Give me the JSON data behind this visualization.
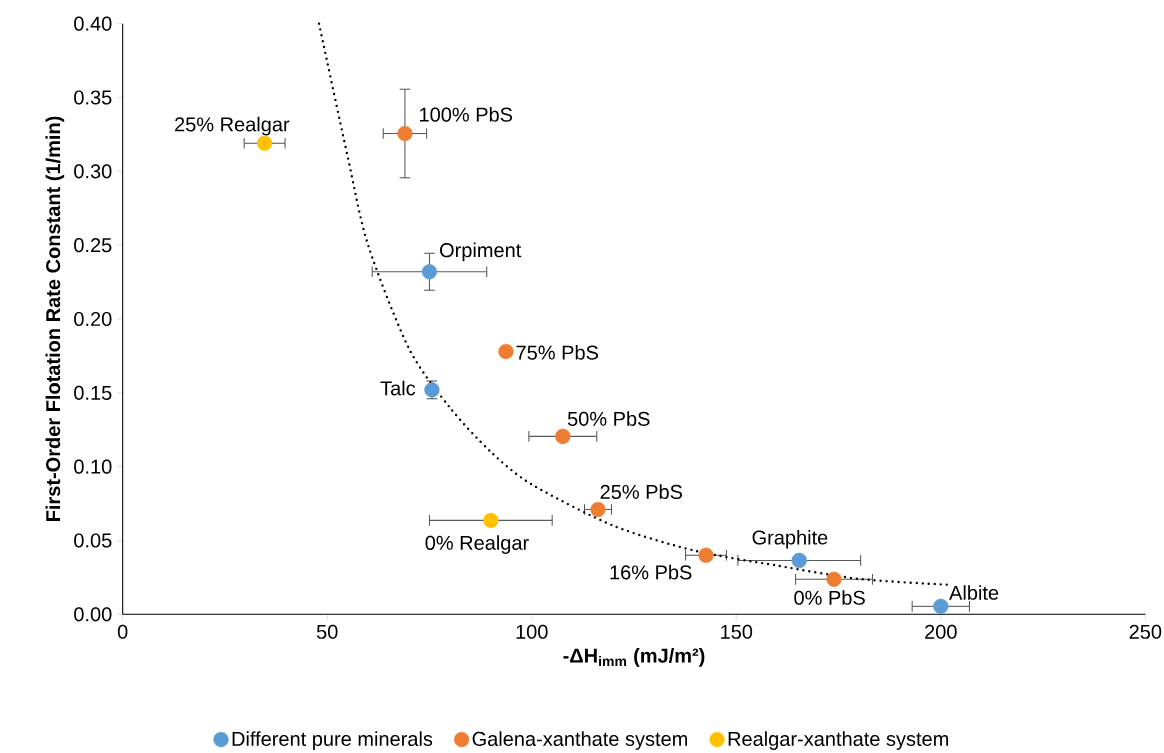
{
  "chart_data": {
    "type": "scatter",
    "xlabel": "-ΔH$_{imm}$ (mJ/m²)",
    "ylabel": "First-Order Flotation Rate Constant (1/min)",
    "xlim": [
      0,
      250
    ],
    "ylim": [
      0,
      0.4
    ],
    "xticks": [
      0,
      50,
      100,
      150,
      200,
      250
    ],
    "yticks": [
      {
        "value": 0,
        "label": "0.00"
      },
      {
        "value": 0.05,
        "label": "0.05"
      },
      {
        "value": 0.1,
        "label": "0.10"
      },
      {
        "value": 0.15,
        "label": "0.15"
      },
      {
        "value": 0.2,
        "label": "0.20"
      },
      {
        "value": 0.25,
        "label": "0.25"
      },
      {
        "value": 0.3,
        "label": "0.30"
      },
      {
        "value": 0.35,
        "label": "0.35"
      },
      {
        "value": 0.4,
        "label": "0.40"
      }
    ],
    "legend": "bottom",
    "series": [
      {
        "type": "line",
        "color": "#000000",
        "line_style": "dotted",
        "marker": "none",
        "x": [
          48,
          55,
          60,
          70,
          80,
          90,
          100,
          120,
          140,
          160,
          180,
          202
        ],
        "values": [
          0.4,
          0.31,
          0.25,
          0.18,
          0.14,
          0.11,
          0.088,
          0.06,
          0.043,
          0.033,
          0.024,
          0.02
        ]
      },
      {
        "name": "Different pure minerals",
        "color": "#5b9bd5",
        "marker": "circle",
        "x": [
          75,
          75.6,
          165.4,
          200
        ],
        "values": [
          0.232,
          0.152,
          0.0365,
          0.0054
        ],
        "errors": [
          0.0125,
          0.006,
          null,
          null
        ],
        "xerrors": [
          14,
          null,
          15,
          7
        ]
      },
      {
        "name": "Galena-xanthate system",
        "color": "#ed7d31",
        "marker": "circle",
        "x": [
          69,
          93.7,
          107.6,
          116.2,
          142.6,
          173.9
        ],
        "values": [
          0.3256,
          0.178,
          0.1205,
          0.071,
          0.04,
          0.0237
        ],
        "errors": [
          0.03,
          null,
          null,
          null,
          null,
          null
        ],
        "xerrors": [
          5.3,
          null,
          8.3,
          3.3,
          5,
          9.4
        ]
      },
      {
        "name": "Realgar-xanthate system",
        "color": "#ffc000",
        "marker": "circle",
        "x": [
          34.7,
          90
        ],
        "values": [
          0.319,
          0.0636
        ],
        "xerrors": [
          5,
          15
        ]
      }
    ],
    "annotations": [
      {
        "text": "25% Realgar",
        "x": 34.7,
        "y": 0.319
      },
      {
        "text": "100% PbS",
        "x": 69,
        "y": 0.3256
      },
      {
        "text": "Orpiment",
        "x": 75,
        "y": 0.232
      },
      {
        "text": "75% PbS",
        "x": 93.7,
        "y": 0.178
      },
      {
        "text": "Talc",
        "x": 75.6,
        "y": 0.152
      },
      {
        "text": "50% PbS",
        "x": 107.6,
        "y": 0.1205
      },
      {
        "text": "25% PbS",
        "x": 116.2,
        "y": 0.071
      },
      {
        "text": "0% Realgar",
        "x": 90,
        "y": 0.0636
      },
      {
        "text": "16% PbS",
        "x": 142.6,
        "y": 0.04
      },
      {
        "text": "Graphite",
        "x": 165.4,
        "y": 0.0365
      },
      {
        "text": "0% PbS",
        "x": 173.9,
        "y": 0.0237
      },
      {
        "text": "Albite",
        "x": 200,
        "y": 0.0054
      }
    ]
  }
}
